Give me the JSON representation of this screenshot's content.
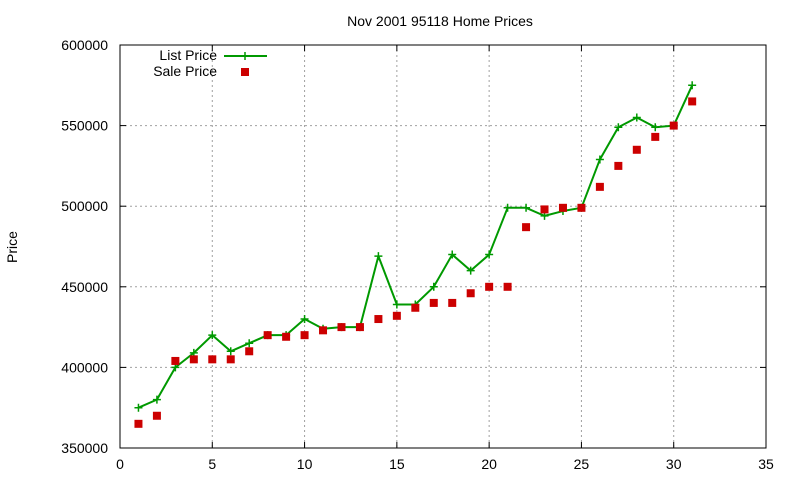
{
  "chart_data": {
    "type": "line",
    "title": "Nov 2001 95118 Home Prices",
    "xlabel": "",
    "ylabel": "Price",
    "xlim": [
      0,
      35
    ],
    "ylim": [
      350000,
      600000
    ],
    "xticks": [
      0,
      5,
      10,
      15,
      20,
      25,
      30,
      35
    ],
    "yticks": [
      350000,
      400000,
      450000,
      500000,
      550000,
      600000
    ],
    "grid": true,
    "legend_position": "top-left",
    "series": [
      {
        "name": "List Price",
        "style": "line+cross",
        "color": "#009900",
        "x": [
          1,
          2,
          3,
          4,
          5,
          6,
          7,
          8,
          9,
          10,
          11,
          12,
          13,
          14,
          15,
          16,
          17,
          18,
          19,
          20,
          21,
          22,
          23,
          24,
          25,
          26,
          27,
          28,
          29,
          30,
          31
        ],
        "y": [
          375000,
          380000,
          400000,
          409000,
          420000,
          410000,
          415000,
          420000,
          420000,
          430000,
          424000,
          425000,
          425000,
          469000,
          439000,
          439000,
          450000,
          470000,
          460000,
          470000,
          499000,
          499000,
          494000,
          497000,
          499000,
          529000,
          549000,
          555000,
          549000,
          550000,
          575000
        ]
      },
      {
        "name": "Sale Price",
        "style": "square",
        "color": "#cc0000",
        "x": [
          1,
          2,
          3,
          4,
          5,
          6,
          7,
          8,
          9,
          10,
          11,
          12,
          13,
          14,
          15,
          16,
          17,
          18,
          19,
          20,
          21,
          22,
          23,
          24,
          25,
          26,
          27,
          28,
          29,
          30,
          31
        ],
        "y": [
          365000,
          370000,
          404000,
          405000,
          405000,
          405000,
          410000,
          420000,
          419000,
          420000,
          423000,
          425000,
          425000,
          430000,
          432000,
          437000,
          440000,
          440000,
          446000,
          450000,
          450000,
          487000,
          498000,
          499000,
          499000,
          512000,
          525000,
          535000,
          543000,
          550000,
          565000
        ]
      }
    ]
  }
}
